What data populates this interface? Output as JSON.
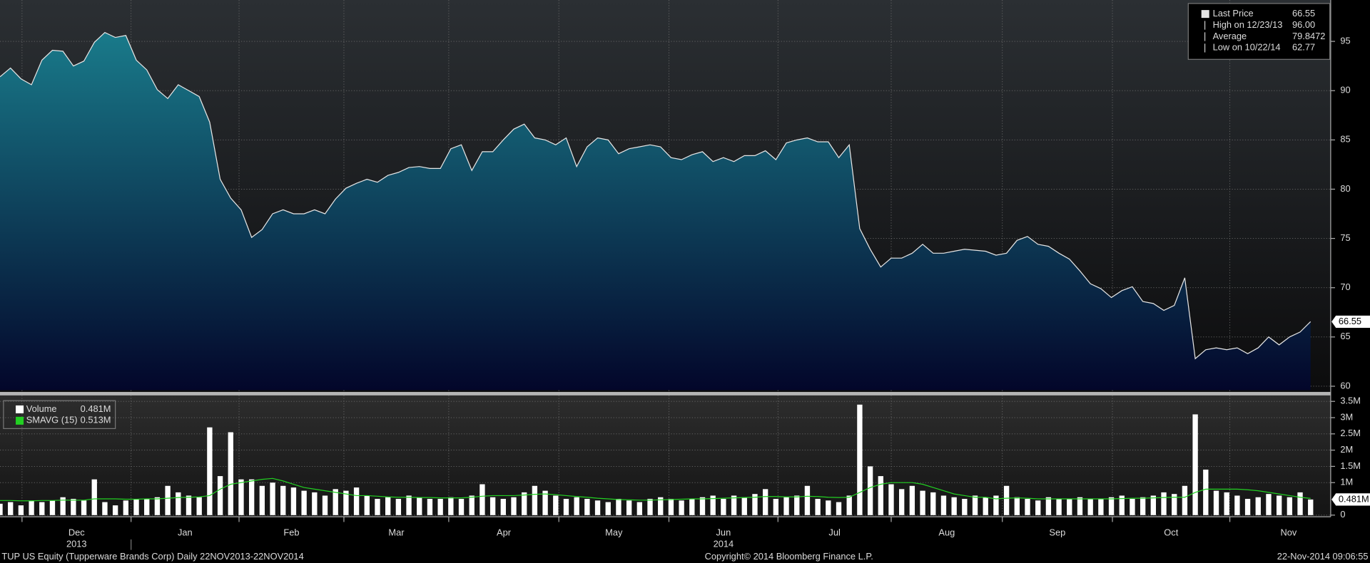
{
  "chart_data": [
    {
      "type": "area",
      "ylim": [
        59.6,
        99.2
      ],
      "yticks": [
        60,
        65,
        70,
        75,
        80,
        85,
        90,
        95
      ],
      "grid": true,
      "fill_top": "#1b8593",
      "fill_bottom": "#03062a",
      "last_label": "66.55",
      "series": [
        {
          "name": "Last Price",
          "legend_value": "66.55",
          "color": "#e6e6e6",
          "values": [
            91.4,
            92.3,
            91.2,
            90.6,
            93.1,
            94.1,
            94.0,
            92.5,
            93.0,
            94.9,
            95.9,
            95.4,
            95.6,
            93.1,
            92.1,
            90.1,
            89.2,
            90.6,
            90.0,
            89.4,
            86.8,
            81.0,
            79.1,
            77.9,
            75.1,
            75.9,
            77.5,
            77.9,
            77.5,
            77.5,
            77.9,
            77.5,
            79.0,
            80.1,
            80.6,
            81.0,
            80.7,
            81.4,
            81.7,
            82.2,
            82.3,
            82.1,
            82.1,
            84.1,
            84.5,
            81.9,
            83.8,
            83.8,
            85.0,
            86.1,
            86.6,
            85.2,
            85.0,
            84.5,
            85.2,
            82.3,
            84.3,
            85.2,
            85.0,
            83.6,
            84.1,
            84.3,
            84.5,
            84.3,
            83.2,
            83.0,
            83.5,
            83.8,
            82.8,
            83.2,
            82.8,
            83.4,
            83.4,
            83.9,
            83.0,
            84.7,
            85.0,
            85.2,
            84.8,
            84.8,
            83.2,
            84.5,
            76.0,
            73.9,
            72.1,
            73.0,
            73.0,
            73.5,
            74.4,
            73.5,
            73.5,
            73.7,
            73.9,
            73.8,
            73.7,
            73.3,
            73.5,
            74.8,
            75.2,
            74.4,
            74.2,
            73.5,
            72.9,
            71.7,
            70.4,
            69.9,
            69.0,
            69.7,
            70.1,
            68.6,
            68.4,
            67.7,
            68.2,
            71.0,
            62.8,
            63.7,
            63.9,
            63.7,
            63.9,
            63.3,
            63.9,
            65.0,
            64.2,
            65.0,
            65.5,
            66.55
          ]
        }
      ],
      "legend_extra": [
        {
          "name": "High on 12/23/13",
          "value": "96.00"
        },
        {
          "name": "Average",
          "value": "79.8472"
        },
        {
          "name": "Low on 10/22/14",
          "value": "62.77"
        }
      ]
    },
    {
      "type": "bar",
      "ylim": [
        -0.05,
        3.63
      ],
      "grid": true,
      "last_label": "0.481M",
      "yticks": [
        0,
        {
          "value": 1,
          "label": "1M"
        },
        {
          "value": 1.5,
          "label": "1.5M"
        },
        {
          "value": 2,
          "label": "2M"
        },
        {
          "value": 2.5,
          "label": "2.5M"
        },
        {
          "value": 3,
          "label": "3M"
        },
        {
          "value": 3.5,
          "label": "3.5M"
        }
      ],
      "series": [
        {
          "name": "Volume",
          "legend_value": "0.481M",
          "color": "#ffffff",
          "values": [
            0.35,
            0.4,
            0.3,
            0.45,
            0.4,
            0.45,
            0.55,
            0.5,
            0.45,
            1.1,
            0.4,
            0.3,
            0.45,
            0.5,
            0.5,
            0.55,
            0.9,
            0.7,
            0.6,
            0.55,
            2.7,
            1.2,
            2.55,
            1.1,
            1.1,
            0.9,
            1.0,
            0.9,
            0.85,
            0.75,
            0.7,
            0.6,
            0.8,
            0.75,
            0.85,
            0.6,
            0.5,
            0.55,
            0.5,
            0.6,
            0.55,
            0.5,
            0.5,
            0.55,
            0.5,
            0.6,
            0.95,
            0.55,
            0.5,
            0.55,
            0.7,
            0.9,
            0.75,
            0.6,
            0.5,
            0.55,
            0.5,
            0.45,
            0.4,
            0.5,
            0.45,
            0.4,
            0.5,
            0.55,
            0.5,
            0.45,
            0.5,
            0.55,
            0.6,
            0.5,
            0.6,
            0.55,
            0.65,
            0.8,
            0.5,
            0.55,
            0.6,
            0.9,
            0.5,
            0.45,
            0.4,
            0.6,
            3.4,
            1.5,
            1.2,
            0.95,
            0.8,
            0.9,
            0.75,
            0.7,
            0.6,
            0.55,
            0.5,
            0.6,
            0.55,
            0.6,
            0.9,
            0.55,
            0.5,
            0.45,
            0.55,
            0.5,
            0.5,
            0.55,
            0.5,
            0.5,
            0.55,
            0.6,
            0.5,
            0.55,
            0.6,
            0.7,
            0.65,
            0.9,
            3.1,
            1.4,
            0.75,
            0.7,
            0.6,
            0.5,
            0.55,
            0.65,
            0.6,
            0.55,
            0.7,
            0.481
          ]
        },
        {
          "name": "SMAVG (15)",
          "type": "line",
          "legend_value": "0.513M",
          "color": "#22d022",
          "values": [
            0.45,
            0.45,
            0.44,
            0.44,
            0.45,
            0.45,
            0.46,
            0.46,
            0.46,
            0.5,
            0.5,
            0.5,
            0.49,
            0.49,
            0.5,
            0.5,
            0.52,
            0.54,
            0.55,
            0.56,
            0.6,
            0.8,
            0.95,
            1.0,
            1.05,
            1.1,
            1.13,
            1.05,
            0.95,
            0.85,
            0.8,
            0.75,
            0.7,
            0.65,
            0.6,
            0.6,
            0.58,
            0.56,
            0.55,
            0.55,
            0.54,
            0.54,
            0.53,
            0.53,
            0.53,
            0.55,
            0.58,
            0.6,
            0.6,
            0.6,
            0.62,
            0.64,
            0.65,
            0.63,
            0.6,
            0.57,
            0.55,
            0.52,
            0.5,
            0.48,
            0.47,
            0.46,
            0.46,
            0.47,
            0.48,
            0.49,
            0.5,
            0.5,
            0.51,
            0.52,
            0.53,
            0.54,
            0.55,
            0.57,
            0.57,
            0.56,
            0.56,
            0.58,
            0.57,
            0.55,
            0.54,
            0.55,
            0.7,
            0.85,
            0.95,
            1.0,
            1.0,
            1.0,
            0.95,
            0.85,
            0.75,
            0.65,
            0.6,
            0.55,
            0.55,
            0.5,
            0.52,
            0.53,
            0.52,
            0.5,
            0.5,
            0.5,
            0.5,
            0.5,
            0.5,
            0.5,
            0.5,
            0.51,
            0.52,
            0.52,
            0.53,
            0.54,
            0.55,
            0.55,
            0.7,
            0.8,
            0.8,
            0.8,
            0.8,
            0.78,
            0.75,
            0.7,
            0.65,
            0.6,
            0.55,
            0.513
          ]
        }
      ]
    }
  ],
  "x_axis": {
    "xlim": [
      0,
      125
    ],
    "xticks": [
      {
        "value": 2.1,
        "label": "Dec"
      },
      {
        "value": 12.5,
        "label": "Jan"
      },
      {
        "value": 22.8,
        "label": "Feb"
      },
      {
        "value": 32.8,
        "label": "Mar"
      },
      {
        "value": 42.8,
        "label": "Apr"
      },
      {
        "value": 53.3,
        "label": "May"
      },
      {
        "value": 63.8,
        "label": "Jun"
      },
      {
        "value": 74.2,
        "label": "Jul"
      },
      {
        "value": 85.0,
        "label": "Aug"
      },
      {
        "value": 95.6,
        "label": "Sep"
      },
      {
        "value": 106.1,
        "label": "Oct"
      },
      {
        "value": 117.3,
        "label": "Nov"
      }
    ],
    "year_ticks": [
      {
        "value": 2.1,
        "label": "2013"
      },
      {
        "value": 63.8,
        "label": "2014"
      }
    ]
  },
  "footer": {
    "left": "TUP US Equity (Tupperware Brands Corp)  Daily 22NOV2013-22NOV2014",
    "center": "Copyright© 2014 Bloomberg Finance L.P.",
    "right": "22-Nov-2014 09:06:55"
  }
}
